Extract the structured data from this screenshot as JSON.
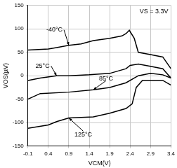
{
  "chart_data": {
    "type": "line",
    "x_label": "VCM(V)",
    "y_label": "VOS(µV)",
    "annotation": "VS = 3.3V",
    "xlim": [
      -0.1,
      3.4
    ],
    "xticks": [
      -0.1,
      0.4,
      0.9,
      1.4,
      1.9,
      2.4,
      2.9,
      3.4
    ],
    "ylim": [
      -150,
      150
    ],
    "yticks": [
      -150,
      -100,
      -50,
      0,
      50,
      100,
      150
    ],
    "grid": true,
    "series": [
      {
        "name": "-40°C",
        "color": "#000000",
        "x": [
          -0.1,
          0.4,
          0.6,
          0.9,
          1.2,
          1.5,
          1.9,
          2.2,
          2.3,
          2.38,
          2.5,
          2.6,
          2.9,
          3.2,
          3.4
        ],
        "values": [
          55,
          57,
          60,
          65,
          68,
          75,
          80,
          85,
          90,
          97,
          80,
          50,
          45,
          40,
          15
        ]
      },
      {
        "name": "25°C",
        "color": "#000000",
        "x": [
          -0.1,
          0.2,
          0.6,
          0.9,
          1.4,
          1.9,
          2.3,
          2.4,
          2.6,
          2.9,
          3.2,
          3.4
        ],
        "values": [
          -10,
          -5,
          0,
          0,
          2,
          5,
          15,
          22,
          25,
          20,
          15,
          -5
        ]
      },
      {
        "name": "85°C",
        "color": "#000000",
        "x": [
          -0.1,
          0.2,
          0.9,
          1.5,
          1.9,
          2.3,
          2.6,
          2.9,
          3.2,
          3.4
        ],
        "values": [
          -50,
          -38,
          -35,
          -30,
          -25,
          -15,
          0,
          5,
          2,
          -5
        ]
      },
      {
        "name": "125°C",
        "color": "#000000",
        "x": [
          -0.1,
          0.4,
          0.6,
          0.9,
          1.5,
          1.9,
          2.3,
          2.45,
          2.55,
          2.7,
          3.2,
          3.4
        ],
        "values": [
          -112,
          -105,
          -98,
          -90,
          -88,
          -80,
          -70,
          -60,
          -25,
          -10,
          -10,
          -20
        ]
      }
    ]
  }
}
